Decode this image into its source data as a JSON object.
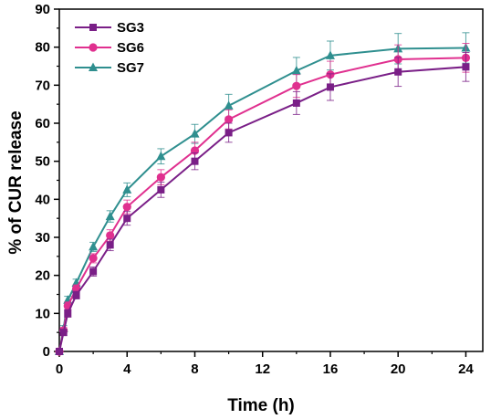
{
  "chart_data": {
    "type": "line",
    "xlabel": "Time (h)",
    "ylabel": "% of CUR release",
    "xlim": [
      0,
      25
    ],
    "ylim": [
      0,
      90
    ],
    "xticks": [
      "0",
      "4",
      "8",
      "12",
      "16",
      "20",
      "24"
    ],
    "yticks": [
      "0",
      "10",
      "20",
      "30",
      "40",
      "50",
      "60",
      "70",
      "80",
      "90"
    ],
    "x": [
      0,
      0.25,
      0.5,
      1,
      2,
      3,
      4,
      6,
      8,
      10,
      14,
      16,
      20,
      24
    ],
    "legend_position": "top-left",
    "series": [
      {
        "name": "SG3",
        "color": "#7a1f87",
        "marker": "square",
        "values": [
          0,
          5,
          10,
          14.8,
          21,
          28,
          35,
          42.5,
          50,
          57.5,
          65.3,
          69.5,
          73.5,
          74.8
        ],
        "errors": [
          0,
          0.8,
          1,
          1,
          1.2,
          1.5,
          1.8,
          2,
          2.2,
          2.5,
          3,
          3.5,
          3.8,
          3.8
        ]
      },
      {
        "name": "SG6",
        "color": "#e0308f",
        "marker": "circle",
        "values": [
          0,
          5.5,
          12,
          16.5,
          24.5,
          30.5,
          38,
          45.8,
          52.8,
          61,
          69.8,
          72.8,
          76.8,
          77.2
        ],
        "errors": [
          0,
          0.8,
          1,
          1,
          1.2,
          1.5,
          1.8,
          2,
          2.2,
          2.5,
          3,
          3.5,
          3.8,
          3.8
        ]
      },
      {
        "name": "SG7",
        "color": "#2f8f8f",
        "marker": "triangle",
        "values": [
          0,
          6,
          13.5,
          18,
          27.5,
          35.5,
          42.5,
          51.3,
          57.2,
          64.6,
          73.8,
          77.8,
          79.6,
          79.8
        ],
        "errors": [
          0,
          0.8,
          1,
          1,
          1.2,
          1.5,
          1.8,
          2,
          2.5,
          3,
          3.5,
          3.8,
          4,
          4
        ]
      }
    ]
  }
}
